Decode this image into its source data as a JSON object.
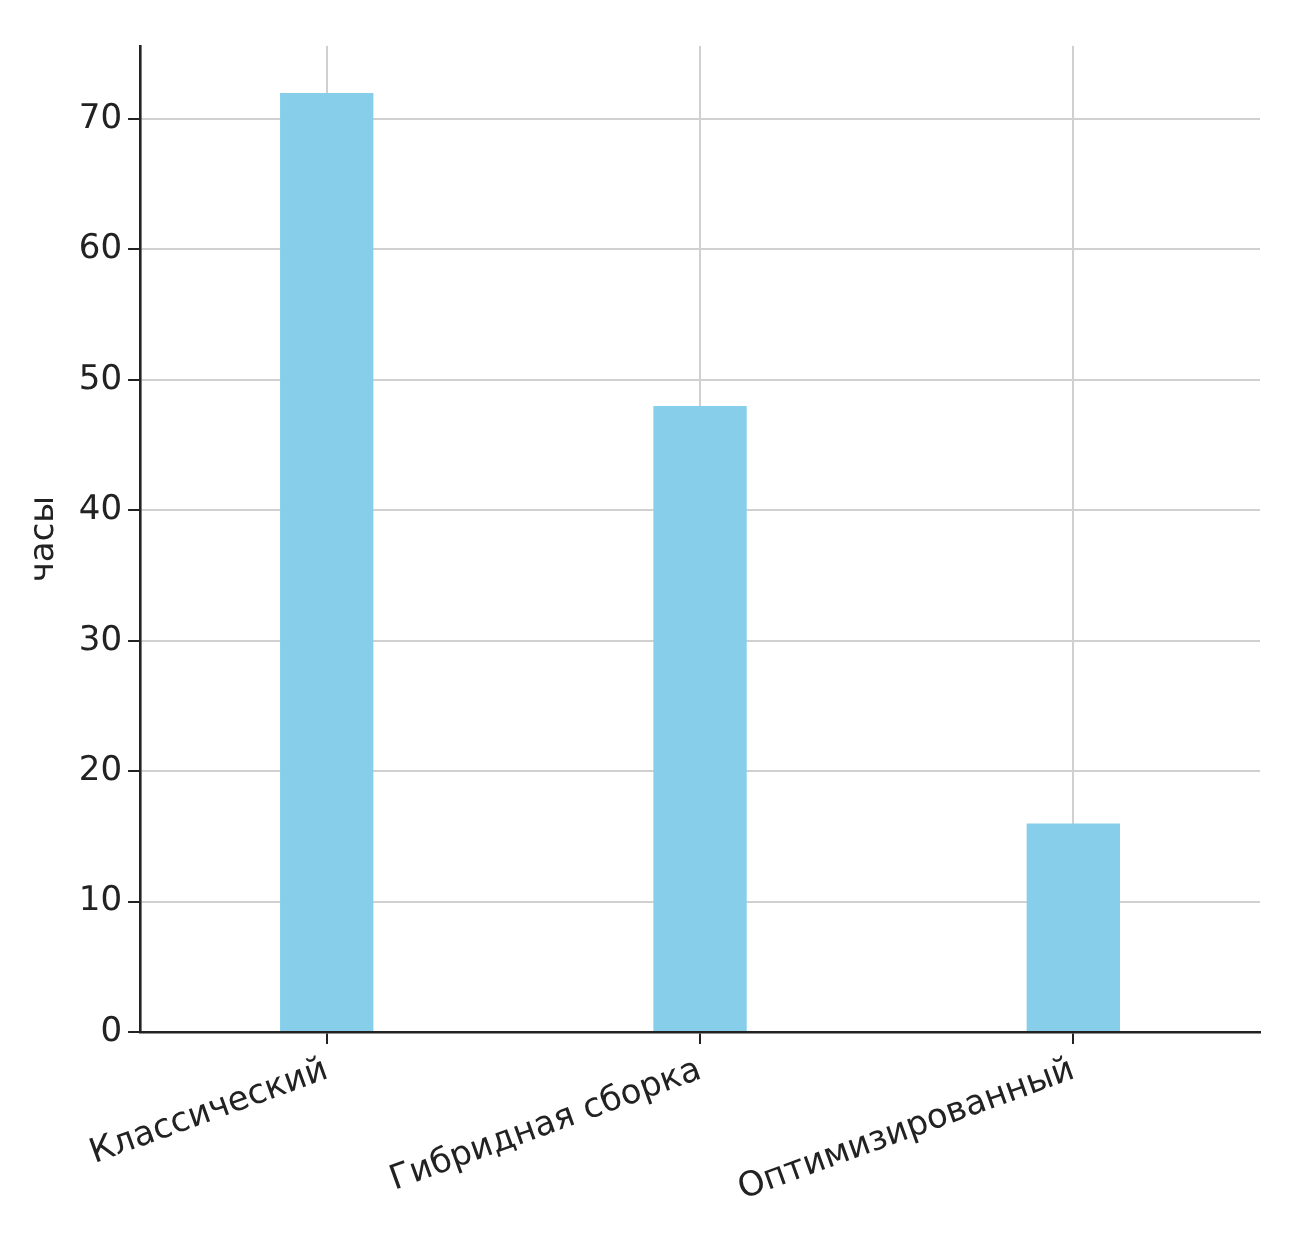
{
  "chart_data": {
    "type": "bar",
    "ylabel": "часы",
    "categories": [
      "Классический",
      "Гибридная сборка",
      "Оптимизированный"
    ],
    "values": [
      72,
      48,
      16
    ],
    "color": "#87ceeb",
    "ylim": [
      0,
      75.6
    ],
    "yticks": [
      0,
      10,
      20,
      30,
      40,
      50,
      60,
      70
    ],
    "grid": true,
    "legend": false
  }
}
